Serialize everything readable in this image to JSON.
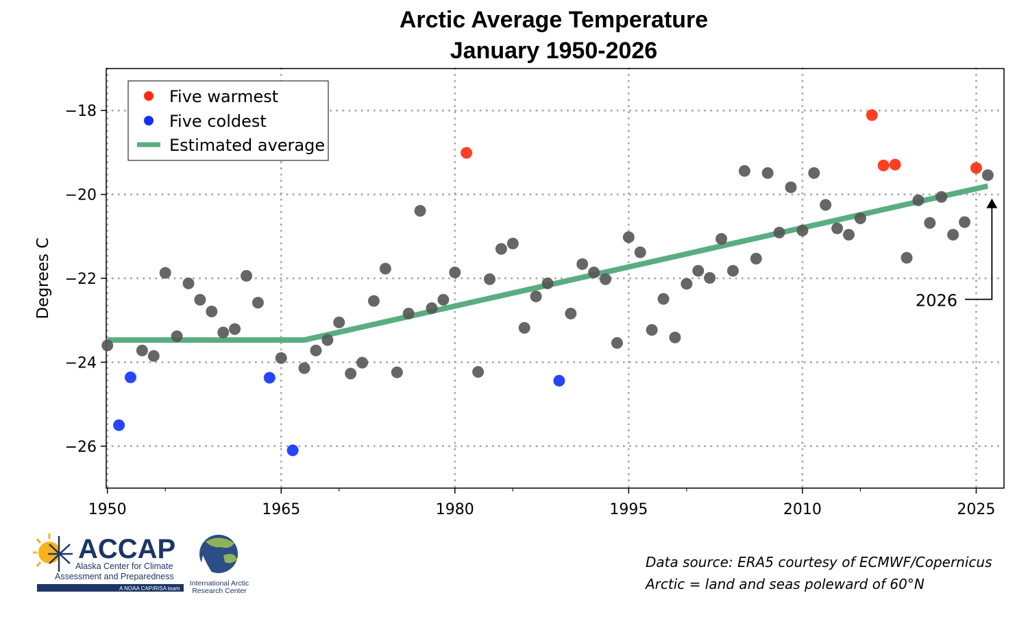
{
  "chart_data": {
    "type": "scatter",
    "title": "Arctic Average Temperature",
    "subtitle": "January 1950-2026",
    "xlabel": "",
    "ylabel": "Degrees C",
    "xlim": [
      1949.9,
      2027.4
    ],
    "ylim": [
      -27,
      -17
    ],
    "xticks": [
      1950,
      1965,
      1980,
      1995,
      2010,
      2025
    ],
    "yticks": [
      -18,
      -20,
      -22,
      -24,
      -26
    ],
    "grid": true,
    "legend_position": "top-left",
    "legend": [
      "Five warmest",
      "Five coldest",
      "Estimated average"
    ],
    "colors": {
      "normal": "#555555",
      "warmest": "#ff2a0a",
      "coldest": "#1030ff",
      "trend": "#5aad80"
    },
    "years": [
      1950,
      1951,
      1952,
      1953,
      1954,
      1955,
      1956,
      1957,
      1958,
      1959,
      1960,
      1961,
      1962,
      1963,
      1964,
      1965,
      1966,
      1967,
      1968,
      1969,
      1970,
      1971,
      1972,
      1973,
      1974,
      1975,
      1976,
      1977,
      1978,
      1979,
      1980,
      1981,
      1982,
      1983,
      1984,
      1985,
      1986,
      1987,
      1988,
      1989,
      1990,
      1991,
      1992,
      1993,
      1994,
      1995,
      1996,
      1997,
      1998,
      1999,
      2000,
      2001,
      2002,
      2003,
      2004,
      2005,
      2006,
      2007,
      2008,
      2009,
      2010,
      2011,
      2012,
      2013,
      2014,
      2015,
      2016,
      2017,
      2018,
      2019,
      2020,
      2021,
      2022,
      2023,
      2024,
      2025,
      2026
    ],
    "values": [
      -23.6,
      -25.5,
      -24.36,
      -23.72,
      -23.85,
      -21.87,
      -23.38,
      -22.12,
      -22.51,
      -22.79,
      -23.29,
      -23.21,
      -21.94,
      -22.58,
      -24.37,
      -23.9,
      -26.1,
      -24.14,
      -23.72,
      -23.47,
      -23.05,
      -24.27,
      -24.01,
      -22.54,
      -21.77,
      -24.24,
      -22.84,
      -20.39,
      -22.71,
      -22.51,
      -21.86,
      -19.01,
      -24.23,
      -22.02,
      -21.3,
      -21.17,
      -23.18,
      -22.43,
      -22.12,
      -24.44,
      -22.84,
      -21.66,
      -21.86,
      -22.02,
      -23.54,
      -21.02,
      -21.38,
      -23.23,
      -22.49,
      -23.41,
      -22.13,
      -21.82,
      -21.99,
      -21.06,
      -21.82,
      -19.44,
      -21.53,
      -19.49,
      -20.91,
      -19.83,
      -20.86,
      -19.49,
      -20.25,
      -20.81,
      -20.96,
      -20.57,
      -18.11,
      -19.31,
      -19.29,
      -21.51,
      -20.14,
      -20.68,
      -20.06,
      -20.96,
      -20.66,
      -19.37,
      -19.54
    ],
    "warmest_years": [
      1981,
      2016,
      2017,
      2018,
      2025
    ],
    "coldest_years": [
      1951,
      1952,
      1964,
      1966,
      1989
    ],
    "trend": {
      "x": [
        1950,
        1967,
        2026
      ],
      "y": [
        -23.47,
        -23.47,
        -19.8
      ]
    },
    "annotation": {
      "text": "2026",
      "year": 2026
    }
  },
  "footer": {
    "source_line1": "Data source: ERA5 courtesy of ECMWF/Copernicus",
    "source_line2": "Arctic = land and seas poleward of 60°N"
  },
  "logos": {
    "accap_name": "ACCAP",
    "accap_line1": "Alaska Center for Climate",
    "accap_line2": "Assessment and Preparedness",
    "accap_tag": "A NOAA CAP/RISA team",
    "iarc_line1": "International Arctic",
    "iarc_line2": "Research Center"
  }
}
